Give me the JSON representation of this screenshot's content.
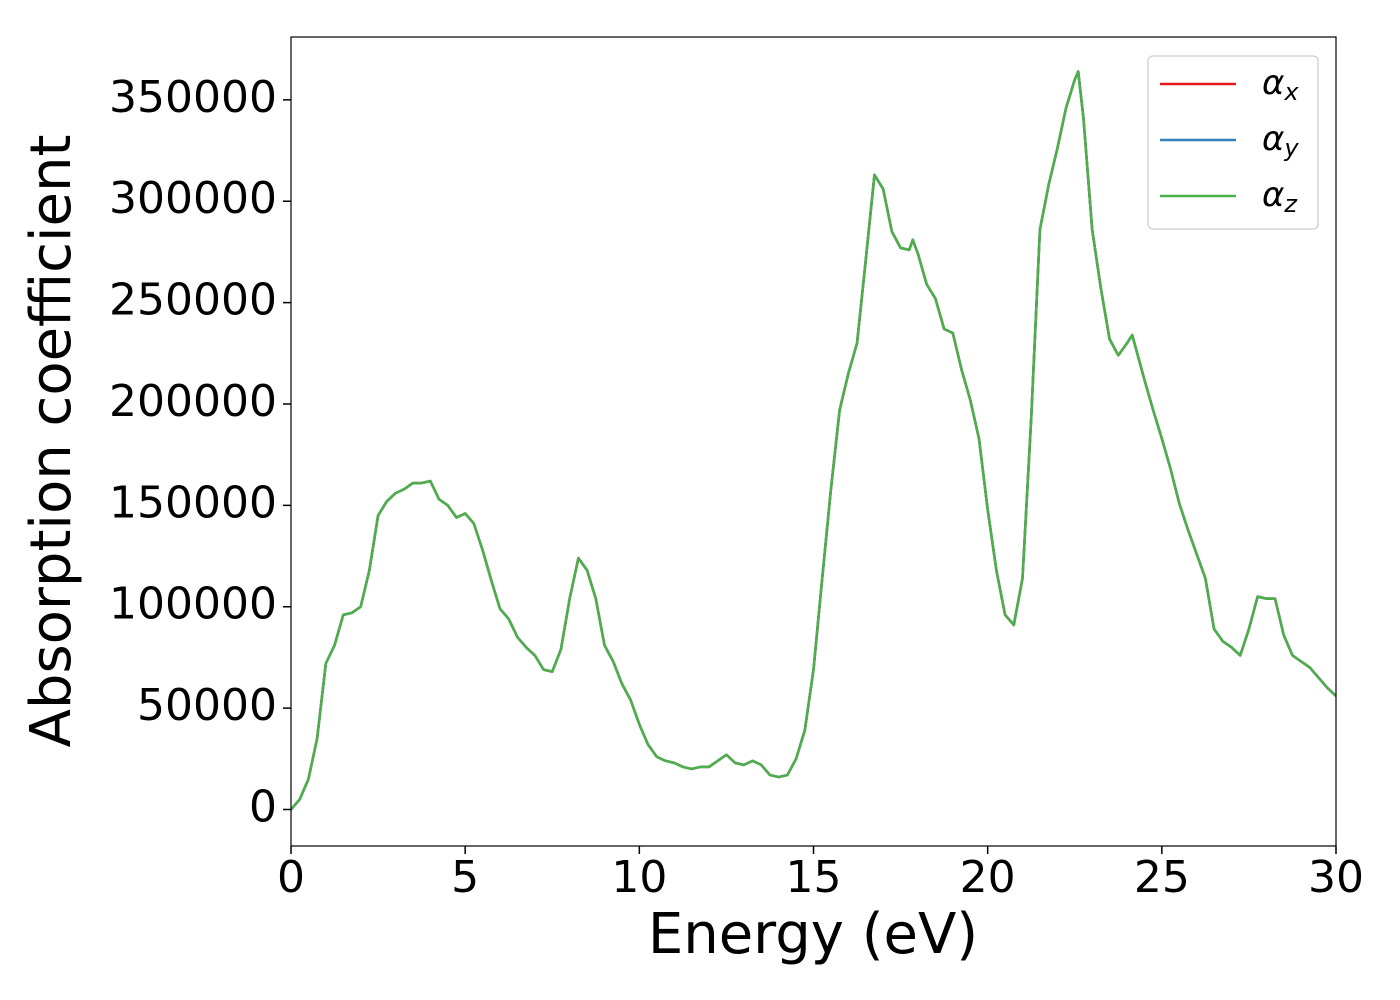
{
  "chart_data": {
    "type": "line",
    "xlabel": "Energy (eV)",
    "ylabel": "Absorption coefficient",
    "x": [
      0,
      0.25,
      0.5,
      0.75,
      1,
      1.25,
      1.5,
      1.75,
      2,
      2.25,
      2.5,
      2.75,
      3,
      3.25,
      3.5,
      3.75,
      4,
      4.25,
      4.5,
      4.75,
      5,
      5.25,
      5.5,
      5.75,
      6,
      6.25,
      6.5,
      6.75,
      7,
      7.25,
      7.5,
      7.75,
      8,
      8.25,
      8.5,
      8.75,
      9,
      9.25,
      9.5,
      9.75,
      10,
      10.25,
      10.5,
      10.75,
      11,
      11.25,
      11.5,
      11.75,
      12,
      12.25,
      12.5,
      12.75,
      13,
      13.25,
      13.5,
      13.75,
      14,
      14.25,
      14.5,
      14.75,
      15,
      15.25,
      15.5,
      15.75,
      16,
      16.25,
      16.5,
      16.75,
      17,
      17.25,
      17.5,
      17.75,
      17.85,
      18,
      18.25,
      18.5,
      18.75,
      19,
      19.25,
      19.5,
      19.75,
      20,
      20.25,
      20.5,
      20.75,
      21,
      21.25,
      21.5,
      21.75,
      22,
      22.25,
      22.5,
      22.6,
      22.75,
      23,
      23.25,
      23.5,
      23.75,
      24,
      24.15,
      24.5,
      24.75,
      25,
      25.25,
      25.5,
      25.75,
      26,
      26.25,
      26.5,
      26.75,
      27,
      27.25,
      27.5,
      27.75,
      28,
      28.25,
      28.5,
      28.75,
      29,
      29.25,
      29.5,
      29.75,
      30
    ],
    "series": [
      {
        "name": "αx",
        "color": "#e41a1c",
        "values": [
          0,
          5000,
          15000,
          35000,
          72000,
          81000,
          96000,
          97000,
          100000,
          118000,
          145000,
          152000,
          156000,
          158000,
          161000,
          161000,
          162000,
          153000,
          150000,
          144000,
          146000,
          141000,
          128000,
          113000,
          99000,
          94000,
          85000,
          80000,
          76000,
          69000,
          68000,
          79000,
          104000,
          124000,
          118000,
          104000,
          81000,
          73000,
          62000,
          54000,
          42000,
          32000,
          26000,
          24000,
          23000,
          21000,
          20000,
          21000,
          21000,
          24000,
          27000,
          23000,
          22000,
          24000,
          22000,
          17000,
          16000,
          17000,
          25000,
          39000,
          69000,
          114000,
          158000,
          197000,
          215000,
          230000,
          271000,
          313000,
          306000,
          285000,
          277000,
          276000,
          281000,
          274000,
          259000,
          252000,
          237000,
          235000,
          217000,
          202000,
          183000,
          148000,
          118000,
          96000,
          91000,
          114000,
          193000,
          286000,
          308000,
          326000,
          346000,
          360000,
          364000,
          341000,
          286000,
          257000,
          232000,
          224000,
          230000,
          234000,
          212000,
          197000,
          183000,
          168000,
          151000,
          138000,
          126000,
          114000,
          89000,
          83000,
          80000,
          76000,
          89000,
          105000,
          104000,
          104000,
          86000,
          76000,
          73000,
          70000,
          65000,
          60000,
          56000
        ]
      },
      {
        "name": "αy",
        "color": "#377eb8",
        "values": [
          0,
          5000,
          15000,
          35000,
          72000,
          81000,
          96000,
          97000,
          100000,
          118000,
          145000,
          152000,
          156000,
          158000,
          161000,
          161000,
          162000,
          153000,
          150000,
          144000,
          146000,
          141000,
          128000,
          113000,
          99000,
          94000,
          85000,
          80000,
          76000,
          69000,
          68000,
          79000,
          104000,
          124000,
          118000,
          104000,
          81000,
          73000,
          62000,
          54000,
          42000,
          32000,
          26000,
          24000,
          23000,
          21000,
          20000,
          21000,
          21000,
          24000,
          27000,
          23000,
          22000,
          24000,
          22000,
          17000,
          16000,
          17000,
          25000,
          39000,
          69000,
          114000,
          158000,
          197000,
          215000,
          230000,
          271000,
          313000,
          306000,
          285000,
          277000,
          276000,
          281000,
          274000,
          259000,
          252000,
          237000,
          235000,
          217000,
          202000,
          183000,
          148000,
          118000,
          96000,
          91000,
          114000,
          193000,
          286000,
          308000,
          326000,
          346000,
          360000,
          364000,
          341000,
          286000,
          257000,
          232000,
          224000,
          230000,
          234000,
          212000,
          197000,
          183000,
          168000,
          151000,
          138000,
          126000,
          114000,
          89000,
          83000,
          80000,
          76000,
          89000,
          105000,
          104000,
          104000,
          86000,
          76000,
          73000,
          70000,
          65000,
          60000,
          56000
        ]
      },
      {
        "name": "αz",
        "color": "#4daf4a",
        "values": [
          0,
          5000,
          15000,
          35000,
          72000,
          81000,
          96000,
          97000,
          100000,
          118000,
          145000,
          152000,
          156000,
          158000,
          161000,
          161000,
          162000,
          153000,
          150000,
          144000,
          146000,
          141000,
          128000,
          113000,
          99000,
          94000,
          85000,
          80000,
          76000,
          69000,
          68000,
          79000,
          104000,
          124000,
          118000,
          104000,
          81000,
          73000,
          62000,
          54000,
          42000,
          32000,
          26000,
          24000,
          23000,
          21000,
          20000,
          21000,
          21000,
          24000,
          27000,
          23000,
          22000,
          24000,
          22000,
          17000,
          16000,
          17000,
          25000,
          39000,
          69000,
          114000,
          158000,
          197000,
          215000,
          230000,
          271000,
          313000,
          306000,
          285000,
          277000,
          276000,
          281000,
          274000,
          259000,
          252000,
          237000,
          235000,
          217000,
          202000,
          183000,
          148000,
          118000,
          96000,
          91000,
          114000,
          193000,
          286000,
          308000,
          326000,
          346000,
          360000,
          364000,
          341000,
          286000,
          257000,
          232000,
          224000,
          230000,
          234000,
          212000,
          197000,
          183000,
          168000,
          151000,
          138000,
          126000,
          114000,
          89000,
          83000,
          80000,
          76000,
          89000,
          105000,
          104000,
          104000,
          86000,
          76000,
          73000,
          70000,
          65000,
          60000,
          56000
        ]
      }
    ],
    "xlim": [
      0,
      30
    ],
    "xticks": [
      0,
      5,
      10,
      15,
      20,
      25,
      30
    ],
    "ylim": [
      -18000,
      381000
    ],
    "yticks": [
      0,
      50000,
      100000,
      150000,
      200000,
      250000,
      300000,
      350000
    ],
    "legend": "upper right",
    "grid": false
  }
}
